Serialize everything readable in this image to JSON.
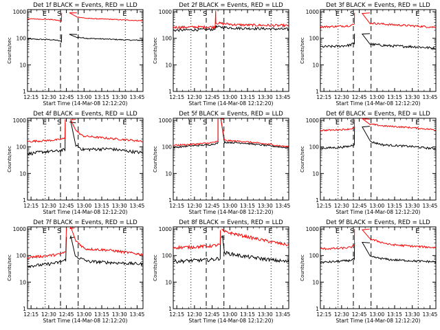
{
  "figure": {
    "background": "#ffffff",
    "series_colors": [
      "#000000",
      "#ff0000"
    ],
    "xlabel": "Start Time (14-Mar-08 12:12:20)",
    "ylabel": "Counts/sec",
    "x_tick_labels": [
      "12:15",
      "12:30",
      "12:45",
      "13:00",
      "13:15",
      "13:30",
      "13:45"
    ],
    "y_tick_labels": [
      "1",
      "10",
      "100",
      "1000"
    ],
    "event_letters": [
      "E",
      "S",
      "E"
    ]
  },
  "chart_data": [
    {
      "type": "line",
      "title": "Det 1f BLACK = Events, RED = LLD",
      "xlabel": "Start Time (14-Mar-08 12:12:20)",
      "ylabel": "Counts/sec",
      "x_range": [
        "12:12",
        "13:50"
      ],
      "ylim": [
        1,
        1200
      ],
      "y_scale": "log",
      "dotted_lines": [
        "12:27",
        "13:35"
      ],
      "dashed_lines": [
        "12:40",
        "12:55"
      ],
      "gap": [
        "12:41",
        "12:54"
      ],
      "series": [
        {
          "color": "#000000",
          "pre": [
            [
              0,
              95
            ],
            [
              0.25,
              92
            ],
            [
              0.6,
              90
            ],
            [
              0.85,
              85
            ],
            [
              1,
              75
            ]
          ],
          "flare_peak": 140,
          "post": [
            [
              0,
              110
            ],
            [
              0.15,
              100
            ],
            [
              0.5,
              92
            ],
            [
              0.8,
              86
            ],
            [
              1,
              84
            ]
          ],
          "noise": 0.02
        },
        {
          "color": "#ff0000",
          "pre": [
            [
              0,
              540
            ],
            [
              0.3,
              530
            ],
            [
              0.7,
              510
            ],
            [
              0.9,
              470
            ],
            [
              1,
              430
            ]
          ],
          "flare_peak": 900,
          "post": [
            [
              0,
              640
            ],
            [
              0.15,
              560
            ],
            [
              0.5,
              520
            ],
            [
              0.8,
              480
            ],
            [
              1,
              460
            ]
          ],
          "noise": 0.015
        }
      ]
    },
    {
      "type": "line",
      "title": "Det 2f BLACK = Events, RED = LLD",
      "xlabel": "Start Time (14-Mar-08 12:12:20)",
      "ylabel": "Counts/sec",
      "x_range": [
        "12:12",
        "13:50"
      ],
      "ylim": [
        1,
        1200
      ],
      "y_scale": "log",
      "dotted_lines": [
        "12:27",
        "13:35"
      ],
      "dashed_lines": [
        "12:40",
        "12:55"
      ],
      "gap": [
        "12:48",
        "12:48"
      ],
      "series": [
        {
          "color": "#000000",
          "pre": [
            [
              0,
              200
            ],
            [
              0.5,
              210
            ],
            [
              1,
              220
            ]
          ],
          "flare_peak": 300,
          "post": [
            [
              0,
              270
            ],
            [
              0.3,
              240
            ],
            [
              1,
              220
            ]
          ],
          "noise": 0.05
        },
        {
          "color": "#ff0000",
          "pre": [
            [
              0,
              260
            ],
            [
              0.5,
              265
            ],
            [
              1,
              270
            ]
          ],
          "flare_peak": 1100,
          "post": [
            [
              0,
              380
            ],
            [
              0.3,
              320
            ],
            [
              1,
              300
            ]
          ],
          "noise": 0.05
        }
      ]
    },
    {
      "type": "line",
      "title": "Det 3f BLACK = Events, RED = LLD",
      "xlabel": "Start Time (14-Mar-08 12:12:20)",
      "ylabel": "Counts/sec",
      "x_range": [
        "12:12",
        "13:50"
      ],
      "ylim": [
        1,
        1200
      ],
      "y_scale": "log",
      "dotted_lines": [
        "12:27",
        "13:35"
      ],
      "dashed_lines": [
        "12:40",
        "12:55"
      ],
      "gap": [
        "12:41",
        "12:54"
      ],
      "series": [
        {
          "color": "#000000",
          "pre": [
            [
              0,
              48
            ],
            [
              0.5,
              50
            ],
            [
              0.85,
              55
            ],
            [
              1,
              65
            ]
          ],
          "flare_peak": 150,
          "post": [
            [
              0,
              60
            ],
            [
              0.3,
              52
            ],
            [
              0.7,
              48
            ],
            [
              1,
              42
            ]
          ],
          "noise": 0.05
        },
        {
          "color": "#ff0000",
          "pre": [
            [
              0,
              270
            ],
            [
              0.5,
              280
            ],
            [
              0.85,
              300
            ],
            [
              1,
              340
            ]
          ],
          "flare_peak": 900,
          "post": [
            [
              0,
              380
            ],
            [
              0.3,
              330
            ],
            [
              0.7,
              290
            ],
            [
              1,
              260
            ]
          ],
          "noise": 0.04
        }
      ]
    },
    {
      "type": "line",
      "title": "Det 4f BLACK = Events, RED = LLD",
      "xlabel": "Start Time (14-Mar-08 12:12:20)",
      "ylabel": "Counts/sec",
      "x_range": [
        "12:12",
        "13:50"
      ],
      "ylim": [
        1,
        1200
      ],
      "y_scale": "log",
      "dotted_lines": [
        "12:27",
        "13:35"
      ],
      "dashed_lines": [
        "12:40",
        "12:55"
      ],
      "gap": [
        "12:44",
        "12:53"
      ],
      "series": [
        {
          "color": "#000000",
          "pre": [
            [
              0,
              55
            ],
            [
              0.4,
              65
            ],
            [
              0.8,
              70
            ],
            [
              1,
              80
            ]
          ],
          "flare_peak": 800,
          "post": [
            [
              0,
              120
            ],
            [
              0.1,
              80
            ],
            [
              0.5,
              85
            ],
            [
              1,
              60
            ]
          ],
          "noise": 0.06
        },
        {
          "color": "#ff0000",
          "pre": [
            [
              0,
              160
            ],
            [
              0.4,
              170
            ],
            [
              0.8,
              185
            ],
            [
              1,
              210
            ]
          ],
          "flare_peak": 1100,
          "post": [
            [
              0,
              420
            ],
            [
              0.1,
              260
            ],
            [
              0.4,
              220
            ],
            [
              0.7,
              190
            ],
            [
              1,
              165
            ]
          ],
          "noise": 0.04
        }
      ]
    },
    {
      "type": "line",
      "title": "Det 5f BLACK = Events, RED = LLD",
      "xlabel": "Start Time (14-Mar-08 12:12:20)",
      "ylabel": "Counts/sec",
      "x_range": [
        "12:12",
        "13:50"
      ],
      "ylim": [
        1,
        1200
      ],
      "y_scale": "log",
      "dotted_lines": [
        "12:27",
        "13:35"
      ],
      "dashed_lines": [
        "12:40",
        "12:55"
      ],
      "gap": [
        "12:50",
        "12:55"
      ],
      "series": [
        {
          "color": "#000000",
          "pre": [
            [
              0,
              95
            ],
            [
              0.4,
              110
            ],
            [
              0.8,
              120
            ],
            [
              1,
              140
            ]
          ],
          "flare_peak": 1100,
          "post": [
            [
              0,
              150
            ],
            [
              0.3,
              140
            ],
            [
              0.7,
              110
            ],
            [
              1,
              92
            ]
          ],
          "noise": 0.03
        },
        {
          "color": "#ff0000",
          "pre": [
            [
              0,
              115
            ],
            [
              0.4,
              125
            ],
            [
              0.8,
              140
            ],
            [
              1,
              160
            ]
          ],
          "flare_peak": 1150,
          "post": [
            [
              0,
              175
            ],
            [
              0.3,
              160
            ],
            [
              0.7,
              125
            ],
            [
              1,
              100
            ]
          ],
          "noise": 0.03
        }
      ]
    },
    {
      "type": "line",
      "title": "Det 6f BLACK = Events, RED = LLD",
      "xlabel": "Start Time (14-Mar-08 12:12:20)",
      "ylabel": "Counts/sec",
      "x_range": [
        "12:12",
        "13:50"
      ],
      "ylim": [
        1,
        1200
      ],
      "y_scale": "log",
      "dotted_lines": [
        "12:27",
        "13:35"
      ],
      "dashed_lines": [
        "12:40",
        "12:55"
      ],
      "gap": [
        "12:41",
        "12:54"
      ],
      "series": [
        {
          "color": "#000000",
          "pre": [
            [
              0,
              90
            ],
            [
              0.5,
              95
            ],
            [
              0.85,
              105
            ],
            [
              1,
              130
            ]
          ],
          "flare_peak": 600,
          "post": [
            [
              0,
              160
            ],
            [
              0.2,
              120
            ],
            [
              0.6,
              105
            ],
            [
              1,
              85
            ]
          ],
          "noise": 0.04
        },
        {
          "color": "#ff0000",
          "pre": [
            [
              0,
              420
            ],
            [
              0.5,
              440
            ],
            [
              0.85,
              470
            ],
            [
              1,
              520
            ]
          ],
          "flare_peak": 1100,
          "post": [
            [
              0,
              720
            ],
            [
              0.2,
              620
            ],
            [
              0.6,
              540
            ],
            [
              1,
              440
            ]
          ],
          "noise": 0.03
        }
      ]
    },
    {
      "type": "line",
      "title": "Det 7f BLACK = Events, RED = LLD",
      "xlabel": "Start Time (14-Mar-08 12:12:20)",
      "ylabel": "Counts/sec",
      "x_range": [
        "12:12",
        "13:50"
      ],
      "ylim": [
        1,
        1200
      ],
      "y_scale": "log",
      "dotted_lines": [
        "12:27",
        "13:35"
      ],
      "dashed_lines": [
        "12:40",
        "12:55"
      ],
      "gap": [
        "12:45",
        "12:52"
      ],
      "series": [
        {
          "color": "#000000",
          "pre": [
            [
              0,
              40
            ],
            [
              0.4,
              45
            ],
            [
              0.8,
              55
            ],
            [
              1,
              70
            ]
          ],
          "flare_peak": 500,
          "post": [
            [
              0,
              95
            ],
            [
              0.2,
              60
            ],
            [
              0.5,
              55
            ],
            [
              1,
              48
            ]
          ],
          "noise": 0.06
        },
        {
          "color": "#ff0000",
          "pre": [
            [
              0,
              85
            ],
            [
              0.4,
              95
            ],
            [
              0.8,
              110
            ],
            [
              1,
              140
            ]
          ],
          "flare_peak": 1100,
          "post": [
            [
              0,
              400
            ],
            [
              0.15,
              180
            ],
            [
              0.5,
              160
            ],
            [
              1,
              110
            ]
          ],
          "noise": 0.05
        }
      ]
    },
    {
      "type": "line",
      "title": "Det 8f BLACK = Events, RED = LLD",
      "xlabel": "Start Time (14-Mar-08 12:12:20)",
      "ylabel": "Counts/sec",
      "x_range": [
        "12:12",
        "13:50"
      ],
      "ylim": [
        1,
        1200
      ],
      "y_scale": "log",
      "dotted_lines": [
        "12:27",
        "13:35"
      ],
      "dashed_lines": [
        "12:40",
        "12:55"
      ],
      "gap": [
        "12:52",
        "12:55"
      ],
      "series": [
        {
          "color": "#000000",
          "pre": [
            [
              0,
              60
            ],
            [
              0.4,
              65
            ],
            [
              0.8,
              70
            ],
            [
              1,
              80
            ]
          ],
          "flare_peak": 500,
          "post": [
            [
              0,
              130
            ],
            [
              0.3,
              95
            ],
            [
              0.7,
              70
            ],
            [
              1,
              58
            ]
          ],
          "noise": 0.07
        },
        {
          "color": "#ff0000",
          "pre": [
            [
              0,
              200
            ],
            [
              0.4,
              210
            ],
            [
              0.8,
              230
            ],
            [
              1,
              260
            ]
          ],
          "flare_peak": 900,
          "post": [
            [
              0,
              800
            ],
            [
              0.3,
              550
            ],
            [
              0.7,
              340
            ],
            [
              1,
              250
            ]
          ],
          "noise": 0.06
        }
      ]
    },
    {
      "type": "line",
      "title": "Det 9f BLACK = Events, RED = LLD",
      "xlabel": "Start Time (14-Mar-08 12:12:20)",
      "ylabel": "Counts/sec",
      "x_range": [
        "12:12",
        "13:50"
      ],
      "ylim": [
        1,
        1200
      ],
      "y_scale": "log",
      "dotted_lines": [
        "12:27",
        "13:35"
      ],
      "dashed_lines": [
        "12:40",
        "12:55"
      ],
      "gap": [
        "12:41",
        "12:54"
      ],
      "series": [
        {
          "color": "#000000",
          "pre": [
            [
              0,
              55
            ],
            [
              0.5,
              60
            ],
            [
              0.85,
              65
            ],
            [
              1,
              75
            ]
          ],
          "flare_peak": 300,
          "post": [
            [
              0,
              90
            ],
            [
              0.3,
              70
            ],
            [
              0.7,
              62
            ],
            [
              1,
              58
            ]
          ],
          "noise": 0.04
        },
        {
          "color": "#ff0000",
          "pre": [
            [
              0,
              180
            ],
            [
              0.5,
              185
            ],
            [
              0.85,
              200
            ],
            [
              1,
              230
            ]
          ],
          "flare_peak": 1000,
          "post": [
            [
              0,
              420
            ],
            [
              0.3,
              260
            ],
            [
              0.7,
              220
            ],
            [
              1,
              200
            ]
          ],
          "noise": 0.04
        }
      ]
    }
  ]
}
